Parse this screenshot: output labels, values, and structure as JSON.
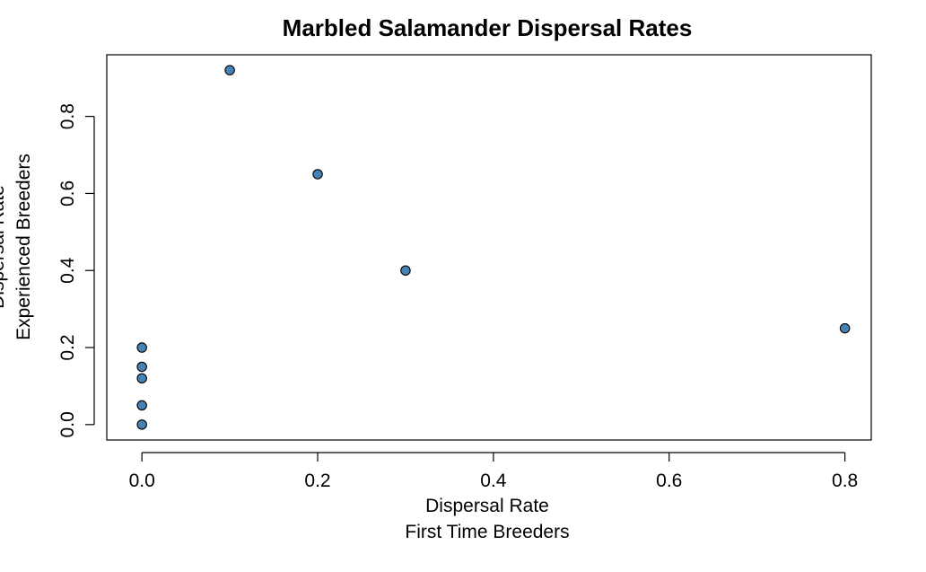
{
  "chart_data": {
    "type": "scatter",
    "title": "Marbled Salamander Dispersal Rates",
    "xlabel_line1": "Dispersal Rate",
    "xlabel_line2": "First Time Breeders",
    "ylabel_line1": "Dispersal Rate",
    "ylabel_line2": "Experienced Breeders",
    "xlim": [
      -0.04,
      0.83
    ],
    "ylim": [
      -0.04,
      0.96
    ],
    "x_ticks": [
      0.0,
      0.2,
      0.4,
      0.6,
      0.8
    ],
    "x_tick_labels": [
      "0.0",
      "0.2",
      "0.4",
      "0.6",
      "0.8"
    ],
    "y_ticks": [
      0.0,
      0.2,
      0.4,
      0.6,
      0.8
    ],
    "y_tick_labels": [
      "0.0",
      "0.2",
      "0.4",
      "0.6",
      "0.8"
    ],
    "grid": false,
    "legend": "none",
    "point_color": "#4682B4",
    "points": [
      {
        "x": 0.1,
        "y": 0.92
      },
      {
        "x": 0.2,
        "y": 0.65
      },
      {
        "x": 0.3,
        "y": 0.4
      },
      {
        "x": 0.8,
        "y": 0.25
      },
      {
        "x": 0.0,
        "y": 0.2
      },
      {
        "x": 0.0,
        "y": 0.15
      },
      {
        "x": 0.0,
        "y": 0.12
      },
      {
        "x": 0.0,
        "y": 0.05
      },
      {
        "x": 0.0,
        "y": 0.0
      }
    ]
  }
}
